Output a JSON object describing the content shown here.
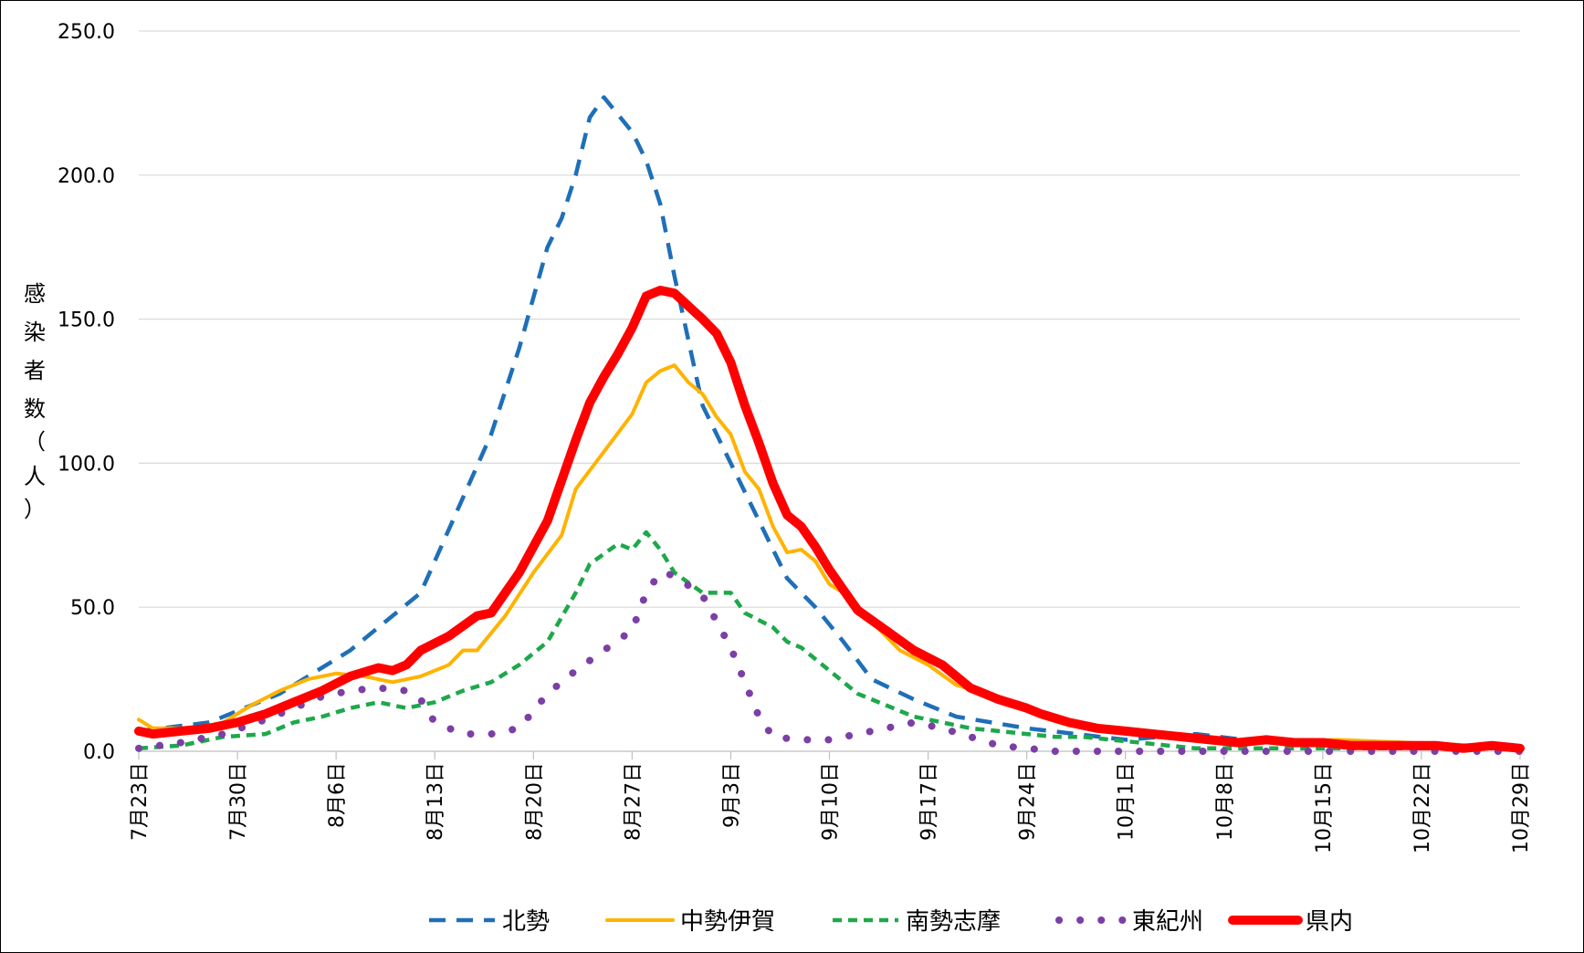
{
  "chart_data": {
    "type": "line",
    "title": "",
    "xlabel": "",
    "ylabel": "感染者数（人）",
    "ylabel_chars": [
      "感",
      "染",
      "者",
      "数",
      "（",
      "人",
      "）"
    ],
    "ylim": [
      0,
      250
    ],
    "yticks": [
      "0.0",
      "50.0",
      "100.0",
      "150.0",
      "200.0",
      "250.0"
    ],
    "xlim": [
      "7月23日",
      "10月29日"
    ],
    "x_tick_labels": [
      "7月23日",
      "7月30日",
      "8月6日",
      "8月13日",
      "8月20日",
      "8月27日",
      "9月3日",
      "9月10日",
      "9月17日",
      "9月24日",
      "10月1日",
      "10月8日",
      "10月15日",
      "10月22日",
      "10月29日"
    ],
    "grid": true,
    "legend_position": "bottom",
    "series": [
      {
        "name": "北勢",
        "color": "#1F6FB8",
        "style": "dashed",
        "points": [
          [
            0,
            7
          ],
          [
            5,
            10
          ],
          [
            10,
            20
          ],
          [
            15,
            35
          ],
          [
            20,
            55
          ],
          [
            25,
            110
          ],
          [
            27,
            140
          ],
          [
            29,
            175
          ],
          [
            30,
            185
          ],
          [
            31,
            200
          ],
          [
            32,
            220
          ],
          [
            33,
            227
          ],
          [
            35,
            215
          ],
          [
            36,
            205
          ],
          [
            37,
            190
          ],
          [
            38,
            165
          ],
          [
            40,
            120
          ],
          [
            42,
            100
          ],
          [
            44,
            80
          ],
          [
            46,
            60
          ],
          [
            48,
            50
          ],
          [
            50,
            38
          ],
          [
            52,
            25
          ],
          [
            55,
            18
          ],
          [
            58,
            12
          ],
          [
            63,
            8
          ],
          [
            70,
            4
          ],
          [
            75,
            6
          ],
          [
            80,
            3
          ],
          [
            85,
            2
          ],
          [
            90,
            1
          ],
          [
            98,
            1
          ]
        ]
      },
      {
        "name": "中勢伊賀",
        "color": "#FFB300",
        "style": "solid",
        "points": [
          [
            0,
            11
          ],
          [
            1,
            8
          ],
          [
            4,
            8
          ],
          [
            6,
            10
          ],
          [
            8,
            16
          ],
          [
            10,
            21
          ],
          [
            12,
            25
          ],
          [
            14,
            27
          ],
          [
            16,
            26
          ],
          [
            18,
            24
          ],
          [
            20,
            26
          ],
          [
            22,
            30
          ],
          [
            23,
            35
          ],
          [
            24,
            35
          ],
          [
            26,
            47
          ],
          [
            28,
            62
          ],
          [
            30,
            75
          ],
          [
            31,
            91
          ],
          [
            33,
            104
          ],
          [
            35,
            117
          ],
          [
            36,
            128
          ],
          [
            37,
            132
          ],
          [
            38,
            134
          ],
          [
            39,
            128
          ],
          [
            40,
            124
          ],
          [
            41,
            116
          ],
          [
            42,
            110
          ],
          [
            43,
            97
          ],
          [
            44,
            91
          ],
          [
            45,
            78
          ],
          [
            46,
            69
          ],
          [
            47,
            70
          ],
          [
            48,
            66
          ],
          [
            49,
            58
          ],
          [
            50,
            55
          ],
          [
            52,
            45
          ],
          [
            54,
            35
          ],
          [
            56,
            30
          ],
          [
            58,
            23
          ],
          [
            60,
            20
          ],
          [
            62,
            17
          ],
          [
            64,
            12
          ],
          [
            66,
            9
          ],
          [
            70,
            7
          ],
          [
            75,
            5
          ],
          [
            80,
            3
          ],
          [
            85,
            4
          ],
          [
            90,
            3
          ],
          [
            95,
            2
          ],
          [
            98,
            1
          ]
        ]
      },
      {
        "name": "南勢志摩",
        "color": "#1EA84A",
        "style": "dashed",
        "points": [
          [
            0,
            1
          ],
          [
            3,
            2
          ],
          [
            6,
            5
          ],
          [
            9,
            6
          ],
          [
            11,
            10
          ],
          [
            13,
            12
          ],
          [
            15,
            15
          ],
          [
            17,
            17
          ],
          [
            19,
            15
          ],
          [
            21,
            17
          ],
          [
            23,
            21
          ],
          [
            25,
            24
          ],
          [
            27,
            30
          ],
          [
            29,
            38
          ],
          [
            31,
            55
          ],
          [
            32,
            65
          ],
          [
            34,
            72
          ],
          [
            35,
            70
          ],
          [
            36,
            76
          ],
          [
            37,
            70
          ],
          [
            38,
            62
          ],
          [
            40,
            55
          ],
          [
            42,
            55
          ],
          [
            43,
            48
          ],
          [
            45,
            43
          ],
          [
            46,
            38
          ],
          [
            47,
            36
          ],
          [
            49,
            28
          ],
          [
            51,
            20
          ],
          [
            53,
            16
          ],
          [
            55,
            12
          ],
          [
            57,
            10
          ],
          [
            59,
            8
          ],
          [
            61,
            7
          ],
          [
            63,
            6
          ],
          [
            65,
            5
          ],
          [
            67,
            5
          ],
          [
            69,
            4
          ],
          [
            71,
            3
          ],
          [
            73,
            2
          ],
          [
            75,
            1
          ],
          [
            80,
            1
          ],
          [
            85,
            1
          ],
          [
            90,
            1
          ],
          [
            95,
            1
          ],
          [
            98,
            1
          ]
        ]
      },
      {
        "name": "東紀州",
        "color": "#7B3FA6",
        "style": "dotted",
        "points": [
          [
            0,
            1
          ],
          [
            3,
            3
          ],
          [
            6,
            6
          ],
          [
            9,
            11
          ],
          [
            11,
            15
          ],
          [
            13,
            19
          ],
          [
            15,
            21
          ],
          [
            17,
            22
          ],
          [
            19,
            21
          ],
          [
            20,
            18
          ],
          [
            21,
            10
          ],
          [
            23,
            6
          ],
          [
            25,
            6
          ],
          [
            27,
            8
          ],
          [
            29,
            20
          ],
          [
            31,
            28
          ],
          [
            33,
            35
          ],
          [
            35,
            42
          ],
          [
            36,
            55
          ],
          [
            37,
            62
          ],
          [
            38,
            61
          ],
          [
            40,
            54
          ],
          [
            41,
            45
          ],
          [
            42,
            36
          ],
          [
            43,
            24
          ],
          [
            44,
            12
          ],
          [
            45,
            5
          ],
          [
            47,
            4
          ],
          [
            49,
            4
          ],
          [
            51,
            6
          ],
          [
            53,
            8
          ],
          [
            55,
            10
          ],
          [
            57,
            8
          ],
          [
            59,
            5
          ],
          [
            61,
            2
          ],
          [
            63,
            1
          ],
          [
            65,
            0
          ],
          [
            70,
            0
          ],
          [
            75,
            0
          ],
          [
            80,
            0
          ],
          [
            85,
            0
          ],
          [
            90,
            0
          ],
          [
            95,
            0
          ],
          [
            98,
            0
          ]
        ]
      },
      {
        "name": "県内",
        "color": "#FF0000",
        "style": "solid",
        "points": [
          [
            0,
            7
          ],
          [
            1,
            6
          ],
          [
            3,
            7
          ],
          [
            5,
            8
          ],
          [
            7,
            10
          ],
          [
            9,
            13
          ],
          [
            11,
            17
          ],
          [
            13,
            21
          ],
          [
            15,
            26
          ],
          [
            17,
            29
          ],
          [
            18,
            28
          ],
          [
            19,
            30
          ],
          [
            20,
            35
          ],
          [
            22,
            40
          ],
          [
            24,
            47
          ],
          [
            25,
            48
          ],
          [
            27,
            62
          ],
          [
            29,
            80
          ],
          [
            30,
            94
          ],
          [
            31,
            108
          ],
          [
            32,
            121
          ],
          [
            33,
            130
          ],
          [
            34,
            138
          ],
          [
            35,
            147
          ],
          [
            36,
            158
          ],
          [
            37,
            160
          ],
          [
            38,
            159
          ],
          [
            40,
            150
          ],
          [
            41,
            145
          ],
          [
            42,
            135
          ],
          [
            43,
            120
          ],
          [
            44,
            107
          ],
          [
            45,
            93
          ],
          [
            46,
            82
          ],
          [
            47,
            78
          ],
          [
            48,
            71
          ],
          [
            49,
            63
          ],
          [
            50,
            56
          ],
          [
            51,
            49
          ],
          [
            53,
            42
          ],
          [
            55,
            35
          ],
          [
            57,
            30
          ],
          [
            58,
            26
          ],
          [
            59,
            22
          ],
          [
            61,
            18
          ],
          [
            63,
            15
          ],
          [
            64,
            13
          ],
          [
            66,
            10
          ],
          [
            68,
            8
          ],
          [
            70,
            7
          ],
          [
            72,
            6
          ],
          [
            74,
            5
          ],
          [
            76,
            4
          ],
          [
            78,
            3
          ],
          [
            80,
            4
          ],
          [
            82,
            3
          ],
          [
            84,
            3
          ],
          [
            86,
            2
          ],
          [
            88,
            2
          ],
          [
            90,
            2
          ],
          [
            92,
            2
          ],
          [
            94,
            1
          ],
          [
            96,
            2
          ],
          [
            98,
            1
          ]
        ]
      }
    ]
  }
}
